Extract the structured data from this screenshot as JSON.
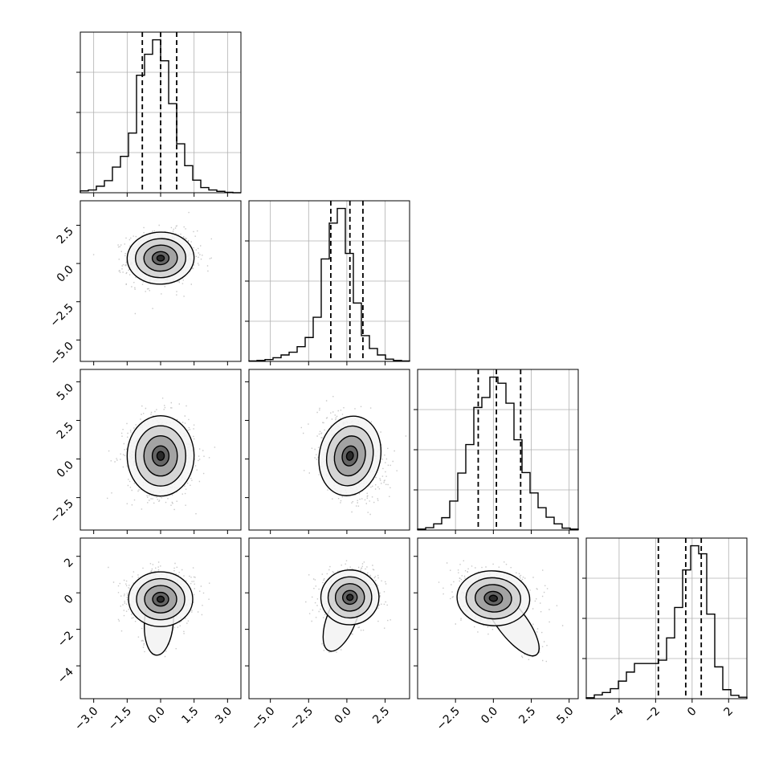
{
  "chart_data": {
    "type": "corner",
    "title": "",
    "grid": true,
    "n_params": 4,
    "params": [
      {
        "index": 0,
        "xlim": [
          -3.6,
          3.6
        ],
        "ticks": [
          -3.0,
          -1.5,
          0.0,
          1.5,
          3.0
        ],
        "tick_labels": [
          "−3.0",
          "−1.5",
          "0.0",
          "1.5",
          "3.0"
        ],
        "quantiles": [
          -0.82,
          0.0,
          0.72
        ],
        "hist": {
          "bins": 20,
          "counts": [
            4,
            6,
            14,
            26,
            55,
            78,
            128,
            252,
            297,
            328,
            283,
            191,
            105,
            58,
            27,
            11,
            6,
            3,
            1,
            0
          ]
        }
      },
      {
        "index": 1,
        "xlim": [
          -6.4,
          4.1
        ],
        "ticks": [
          -5.0,
          -2.5,
          0.0,
          2.5
        ],
        "tick_labels": [
          "−5.0",
          "−2.5",
          "0.0",
          "2.5"
        ],
        "ylim": [
          -6.4,
          4.1
        ],
        "yticks": [
          -5.0,
          -2.5,
          0.0,
          2.5
        ],
        "ytick_labels": [
          "−5.0",
          "−2.5",
          "0.0",
          "2.5"
        ],
        "quantiles": [
          -1.05,
          0.2,
          1.05
        ],
        "hist": {
          "bins": 20,
          "counts": [
            1,
            2,
            4,
            8,
            14,
            20,
            32,
            52,
            96,
            223,
            301,
            333,
            235,
            127,
            56,
            28,
            14,
            5,
            2,
            1
          ]
        }
      },
      {
        "index": 2,
        "xlim": [
          -5.0,
          5.6
        ],
        "ticks": [
          -2.5,
          0.0,
          2.5,
          5.0
        ],
        "tick_labels": [
          "−2.5",
          "0.0",
          "2.5",
          "5.0"
        ],
        "ylim": [
          -4.6,
          5.8
        ],
        "yticks": [
          -2.5,
          0.0,
          2.5,
          5.0
        ],
        "ytick_labels": [
          "−2.5",
          "0.0",
          "2.5",
          "5.0"
        ],
        "quantiles": [
          -1.0,
          0.2,
          1.8
        ],
        "hist": {
          "bins": 20,
          "counts": [
            2,
            5,
            13,
            26,
            61,
            120,
            180,
            258,
            279,
            322,
            309,
            267,
            190,
            121,
            78,
            47,
            27,
            13,
            4,
            2
          ]
        }
      },
      {
        "index": 3,
        "xlim": [
          -5.8,
          3.0
        ],
        "ticks": [
          -4,
          -2,
          0,
          2
        ],
        "tick_labels": [
          "−4",
          "−2",
          "0",
          "2"
        ],
        "ylim": [
          -5.8,
          3.0
        ],
        "yticks": [
          -4,
          -2,
          0,
          2
        ],
        "ytick_labels": [
          "−4",
          "−2",
          "0",
          "2"
        ],
        "quantiles": [
          -1.85,
          -0.35,
          0.5
        ],
        "hist": {
          "bins": 20,
          "counts": [
            2,
            8,
            13,
            21,
            37,
            56,
            74,
            74,
            74,
            81,
            128,
            192,
            271,
            322,
            305,
            178,
            67,
            19,
            7,
            3
          ]
        }
      }
    ],
    "pairs": [
      {
        "x": 0,
        "y": 1,
        "center": [
          0.0,
          0.35
        ],
        "sd": [
          0.75,
          0.85
        ],
        "rho": 0.05,
        "tail": null
      },
      {
        "x": 0,
        "y": 2,
        "center": [
          0.0,
          0.2
        ],
        "sd": [
          0.75,
          1.3
        ],
        "rho": 0.0,
        "tail": null
      },
      {
        "x": 1,
        "y": 2,
        "center": [
          0.2,
          0.2
        ],
        "sd": [
          1.0,
          1.3
        ],
        "rho": -0.3,
        "tail": null
      },
      {
        "x": 0,
        "y": 3,
        "center": [
          0.0,
          -0.35
        ],
        "sd": [
          0.72,
          0.75
        ],
        "rho": 0.0,
        "tail": [
          -0.15,
          -2.8
        ]
      },
      {
        "x": 1,
        "y": 3,
        "center": [
          0.2,
          -0.25
        ],
        "sd": [
          0.95,
          0.75
        ],
        "rho": 0.1,
        "tail": [
          -0.9,
          -2.6
        ]
      },
      {
        "x": 2,
        "y": 3,
        "center": [
          0.0,
          -0.3
        ],
        "sd": [
          1.2,
          0.75
        ],
        "rho": -0.1,
        "tail": [
          2.4,
          -2.9
        ]
      }
    ]
  }
}
